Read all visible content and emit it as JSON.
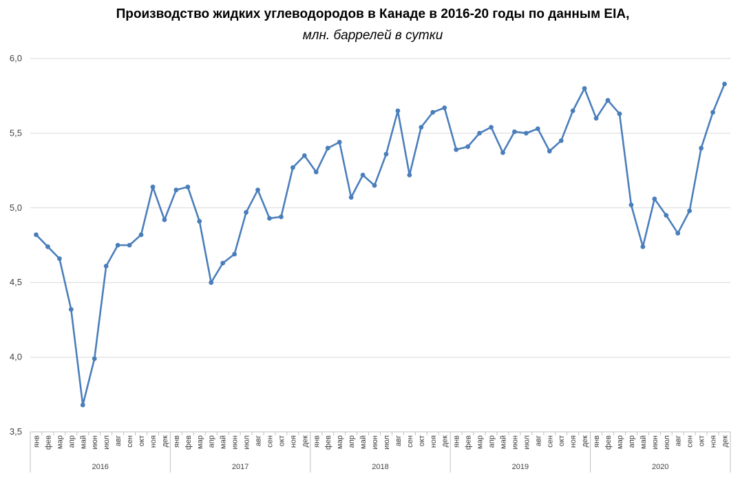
{
  "chart_data": {
    "type": "line",
    "title": "Производство жидких углеводородов в Канаде в 2016-20 годы по данным EIA,",
    "subtitle": "млн. баррелей в сутки",
    "ylim": [
      3.5,
      6.0
    ],
    "yticks": [
      "3,5",
      "4,0",
      "4,5",
      "5,0",
      "5,5",
      "6,0"
    ],
    "grid": true,
    "line_color": "#4a7ebb",
    "months": [
      "янв",
      "фев",
      "мар",
      "апр",
      "май",
      "июн",
      "июл",
      "авг",
      "сен",
      "окт",
      "ноя",
      "дек"
    ],
    "years": [
      "2016",
      "2017",
      "2018",
      "2019",
      "2020"
    ],
    "series": [
      {
        "values": [
          4.82,
          4.74,
          4.66,
          4.32,
          3.68,
          3.99,
          4.61,
          4.75,
          4.75,
          4.82,
          5.14,
          4.92,
          5.12,
          5.14,
          4.91,
          4.5,
          4.63,
          4.69,
          4.97,
          5.12,
          4.93,
          4.94,
          5.27,
          5.35,
          5.24,
          5.4,
          5.44,
          5.07,
          5.22,
          5.15,
          5.36,
          5.65,
          5.22,
          5.54,
          5.64,
          5.67,
          5.39,
          5.41,
          5.5,
          5.54,
          5.37,
          5.51,
          5.5,
          5.53,
          5.38,
          5.45,
          5.65,
          5.8,
          5.6,
          5.72,
          5.63,
          5.02,
          4.74,
          5.06,
          4.95,
          4.83,
          4.98,
          5.4,
          5.64,
          5.83
        ]
      }
    ]
  }
}
